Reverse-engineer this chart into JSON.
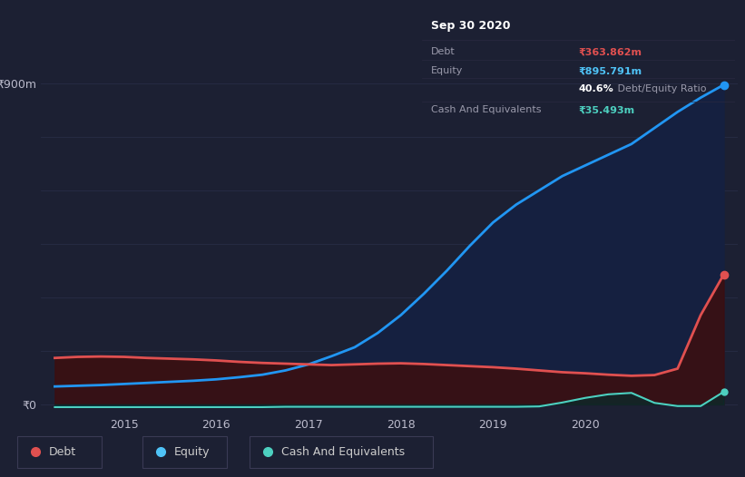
{
  "background_color": "#1c2033",
  "plot_bg_color": "#1c2033",
  "grid_color": "#2a2f4a",
  "title_box": {
    "date": "Sep 30 2020",
    "debt_label": "Debt",
    "debt_value": "₹363.862m",
    "equity_label": "Equity",
    "equity_value": "₹895.791m",
    "ratio_bold": "40.6%",
    "ratio_text": " Debt/Equity Ratio",
    "cash_label": "Cash And Equivalents",
    "cash_value": "₹35.493m",
    "debt_color": "#e05050",
    "equity_color": "#4fc3f7",
    "cash_color": "#4dd0c0",
    "label_color": "#9999aa",
    "box_bg": "#0a0b10",
    "box_border": "#3a3a50"
  },
  "y_label": "₹900m",
  "y_zero_label": "₹0",
  "years_x": [
    2013.75,
    2014.0,
    2014.25,
    2014.5,
    2014.75,
    2015.0,
    2015.25,
    2015.5,
    2015.75,
    2016.0,
    2016.25,
    2016.5,
    2016.75,
    2017.0,
    2017.25,
    2017.5,
    2017.75,
    2018.0,
    2018.25,
    2018.5,
    2018.75,
    2019.0,
    2019.25,
    2019.5,
    2019.75,
    2020.0,
    2020.25,
    2020.5,
    2020.75,
    2021.0
  ],
  "equity": [
    50,
    52,
    54,
    57,
    60,
    63,
    66,
    70,
    76,
    83,
    95,
    112,
    135,
    160,
    200,
    250,
    310,
    375,
    445,
    510,
    560,
    600,
    640,
    670,
    700,
    730,
    775,
    820,
    860,
    896
  ],
  "debt": [
    130,
    133,
    134,
    133,
    130,
    128,
    126,
    123,
    119,
    116,
    114,
    112,
    110,
    112,
    114,
    115,
    113,
    110,
    107,
    104,
    100,
    95,
    90,
    87,
    83,
    80,
    82,
    100,
    250,
    364
  ],
  "cash": [
    -8,
    -8,
    -8,
    -8,
    -8,
    -8,
    -8,
    -8,
    -8,
    -8,
    -7,
    -7,
    -7,
    -7,
    -7,
    -7,
    -7,
    -7,
    -7,
    -7,
    -7,
    -6,
    5,
    18,
    28,
    32,
    4,
    -5,
    -5,
    35
  ],
  "equity_color": "#2196f3",
  "debt_color": "#e05050",
  "cash_color": "#4dd0c0",
  "equity_fill_color": "#152040",
  "debt_fill_color": "#3d0f0f",
  "ylim": [
    -30,
    960
  ],
  "xlim": [
    2013.6,
    2021.15
  ],
  "xticks": [
    2014.5,
    2015.5,
    2016.5,
    2017.5,
    2018.5,
    2019.5,
    2020.5
  ],
  "xtick_labels": [
    "2015",
    "2016",
    "2017",
    "2018",
    "2019",
    "2020",
    ""
  ],
  "grid_y_values": [
    0,
    150,
    300,
    450,
    600,
    750,
    900
  ],
  "legend_items": [
    {
      "label": "Debt",
      "color": "#e05050"
    },
    {
      "label": "Equity",
      "color": "#4fc3f7"
    },
    {
      "label": "Cash And Equivalents",
      "color": "#4dd0c0"
    }
  ]
}
